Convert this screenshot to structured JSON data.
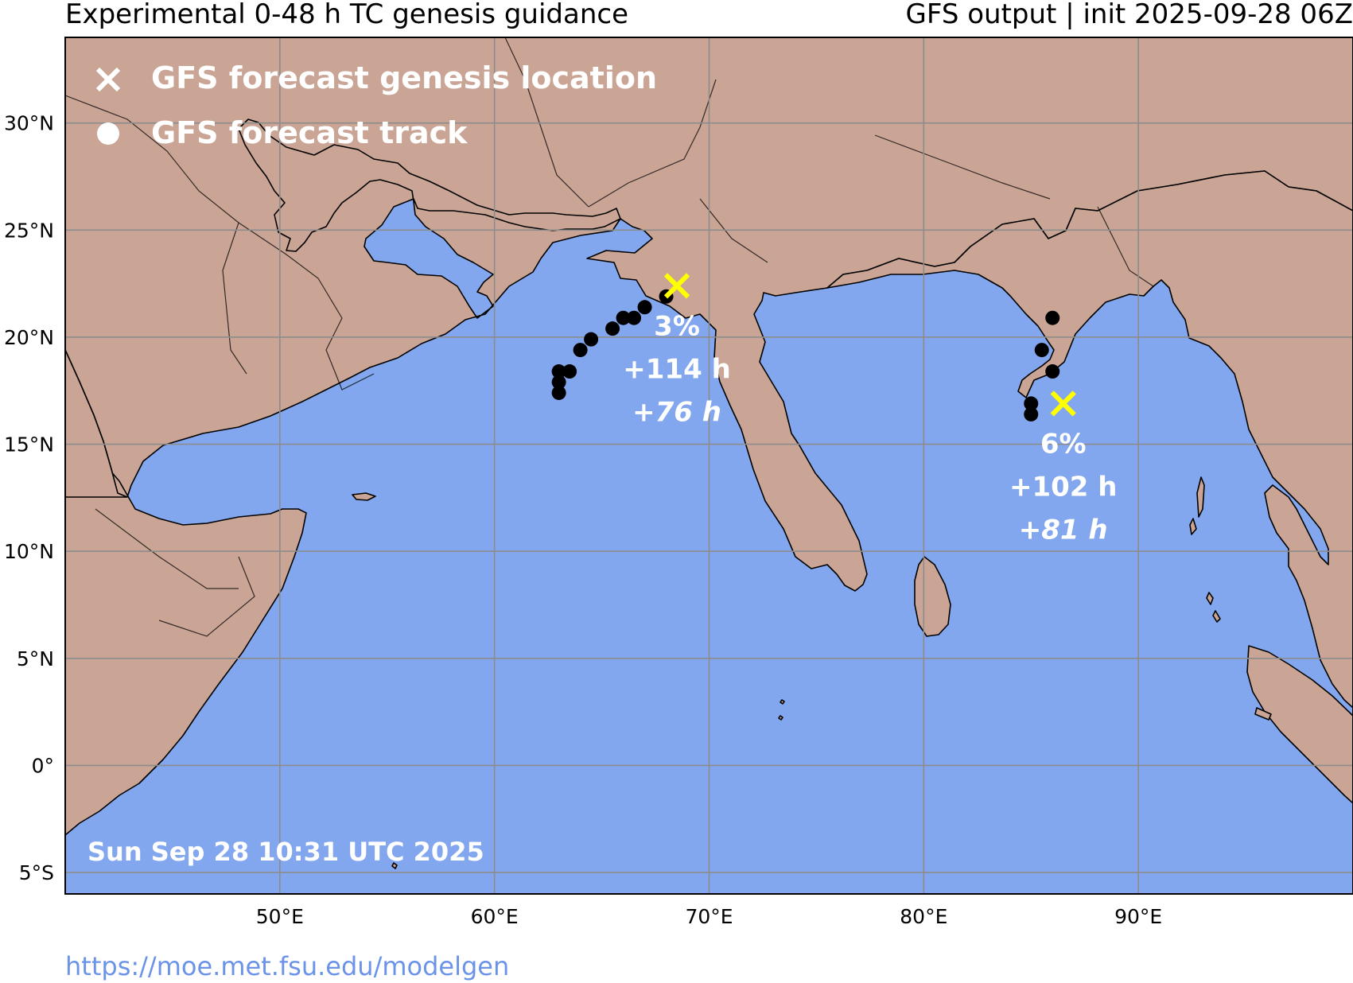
{
  "header": {
    "title_left": "Experimental 0-48 h TC genesis guidance",
    "title_right": "GFS output | init 2025-09-28 06Z"
  },
  "legend": {
    "genesis_label": "GFS forecast genesis location",
    "track_label": "GFS forecast track"
  },
  "map": {
    "extent": {
      "lon_min": 40,
      "lon_max": 100,
      "lat_min": -6,
      "lat_max": 34
    },
    "colors": {
      "ocean": "#83a7ee",
      "land": "#caa595",
      "grid": "#8c8c8c",
      "genesis_marker": "#ffff00",
      "track_point": "#000000"
    },
    "lat_ticks": [
      {
        "lat": 30,
        "label": "30°N"
      },
      {
        "lat": 25,
        "label": "25°N"
      },
      {
        "lat": 20,
        "label": "20°N"
      },
      {
        "lat": 15,
        "label": "15°N"
      },
      {
        "lat": 10,
        "label": "10°N"
      },
      {
        "lat": 5,
        "label": "5°N"
      },
      {
        "lat": 0,
        "label": "0°"
      },
      {
        "lat": -5,
        "label": "5°S"
      }
    ],
    "lon_ticks": [
      {
        "lon": 50,
        "label": "50°E"
      },
      {
        "lon": 60,
        "label": "60°E"
      },
      {
        "lon": 70,
        "label": "70°E"
      },
      {
        "lon": 80,
        "label": "80°E"
      },
      {
        "lon": 90,
        "label": "90°E"
      }
    ],
    "systems": [
      {
        "genesis": {
          "lon": 68.5,
          "lat": 22.4
        },
        "probability": "3%",
        "lead_time": "+114 h",
        "lead_time_italic": "+76 h",
        "track": [
          {
            "lon": 68.0,
            "lat": 21.9
          },
          {
            "lon": 67.0,
            "lat": 21.4
          },
          {
            "lon": 66.5,
            "lat": 20.9
          },
          {
            "lon": 66.0,
            "lat": 20.9
          },
          {
            "lon": 65.5,
            "lat": 20.4
          },
          {
            "lon": 64.5,
            "lat": 19.9
          },
          {
            "lon": 64.0,
            "lat": 19.4
          },
          {
            "lon": 63.5,
            "lat": 18.4
          },
          {
            "lon": 63.0,
            "lat": 18.4
          },
          {
            "lon": 63.0,
            "lat": 17.9
          },
          {
            "lon": 63.0,
            "lat": 17.4
          }
        ]
      },
      {
        "genesis": {
          "lon": 86.5,
          "lat": 16.9
        },
        "probability": "6%",
        "lead_time": "+102 h",
        "lead_time_italic": "+81 h",
        "track": [
          {
            "lon": 86.0,
            "lat": 20.9
          },
          {
            "lon": 85.5,
            "lat": 19.4
          },
          {
            "lon": 86.0,
            "lat": 18.4
          },
          {
            "lon": 85.0,
            "lat": 16.9
          },
          {
            "lon": 85.0,
            "lat": 16.4
          }
        ]
      }
    ],
    "timestamp": "Sun Sep 28 10:31 UTC 2025"
  },
  "footer": {
    "url": "https://moe.met.fsu.edu/modelgen"
  }
}
